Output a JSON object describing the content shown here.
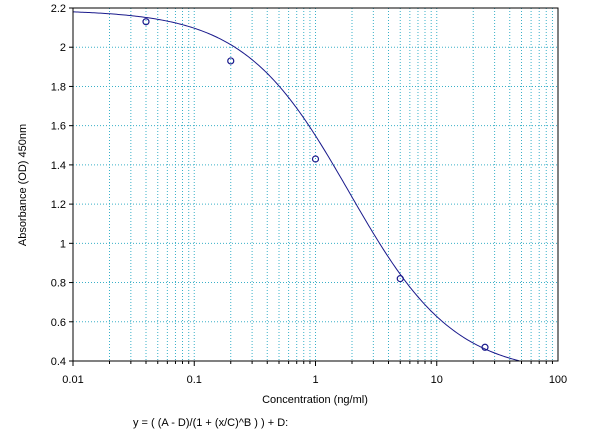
{
  "chart_data": {
    "type": "scatter",
    "title": "",
    "xlabel": "Concentration (ng/ml)",
    "ylabel": "Absorbance (OD) 450nm",
    "x_scale": "log",
    "xlim": [
      0.01,
      100
    ],
    "ylim": [
      0.4,
      2.2
    ],
    "grid": true,
    "x_ticks": [
      "0.01",
      "0.1",
      "1",
      "10",
      "100"
    ],
    "y_ticks": [
      "0.4",
      "0.6",
      "0.8",
      "1",
      "1.2",
      "1.4",
      "1.6",
      "1.8",
      "2",
      "2.2"
    ],
    "points": [
      {
        "x": 0.04,
        "y": 2.13
      },
      {
        "x": 0.2,
        "y": 1.93
      },
      {
        "x": 1,
        "y": 1.43
      },
      {
        "x": 5,
        "y": 0.82
      },
      {
        "x": 25,
        "y": 0.47
      }
    ],
    "fit": {
      "model": "4PL",
      "A": 2.19,
      "B": 1.0,
      "C": 1.9,
      "D": 0.33
    },
    "colors": {
      "curve": "#1a1a8c",
      "points": "#1a1a8c",
      "grid": "#3ab0c8",
      "axis": "#000000"
    }
  },
  "formula_text": "y = ( (A - D)/(1 + (x/C)^B ) ) + D:"
}
